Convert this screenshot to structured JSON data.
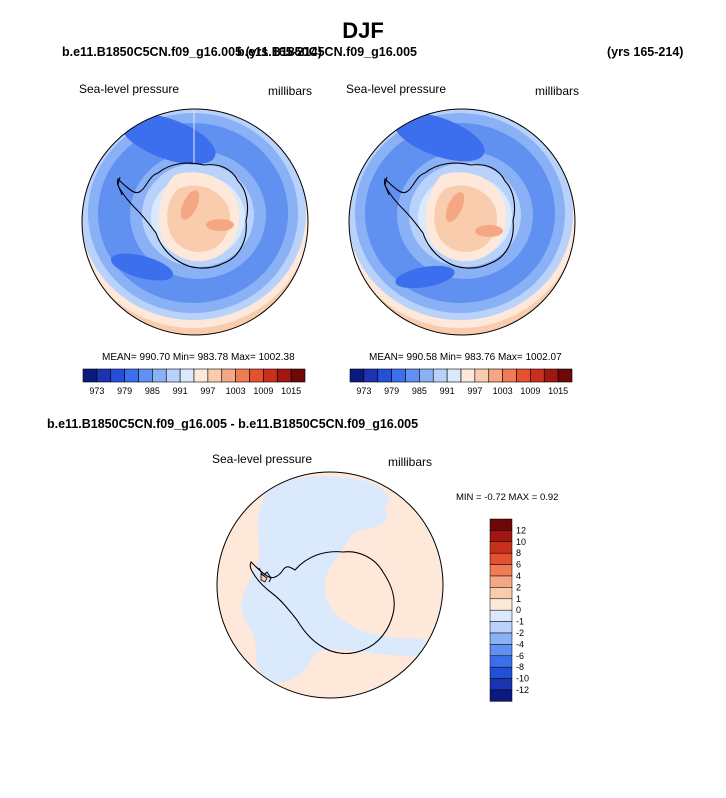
{
  "figure": {
    "title": "DJF",
    "case_left": "b.e11.B1850C5CN.f09_g16.005 (yrs 165-214)",
    "case_right": "b.e11.B1850C5CN.f09_g16.005",
    "years_right": "(yrs 165-214)"
  },
  "panel_left": {
    "field": "Sea-level pressure",
    "units": "millibars",
    "stats": "MEAN= 990.70  Min= 983.78  Max= 1002.38"
  },
  "panel_right": {
    "field": "Sea-level pressure",
    "units": "millibars",
    "stats": "MEAN= 990.58  Min= 983.76  Max= 1002.07"
  },
  "panel_diff": {
    "title": "b.e11.B1850C5CN.f09_g16.005 - b.e11.B1850C5CN.f09_g16.005",
    "field": "Sea-level pressure",
    "units": "millibars",
    "stats": "MIN =  -0.72 MAX =   0.92"
  },
  "colorbar_top": {
    "colors": [
      "#0a1a7e",
      "#1b33b0",
      "#2450d8",
      "#3c6fee",
      "#6090f0",
      "#8ab1f5",
      "#b8d2fb",
      "#dbe9fd",
      "#fde8d9",
      "#f9ccae",
      "#f5a783",
      "#f07c56",
      "#e4512f",
      "#c8301d",
      "#a01610",
      "#6e0707"
    ],
    "tick_labels": [
      "973",
      "979",
      "985",
      "991",
      "997",
      "1003",
      "1009",
      "1015"
    ]
  },
  "colorbar_diff": {
    "colors": [
      "#0a1a7e",
      "#1b33b0",
      "#2450d8",
      "#3c6fee",
      "#6090f0",
      "#8ab1f5",
      "#b8d2fb",
      "#dbe9fd",
      "#fde8d9",
      "#f9ccae",
      "#f5a783",
      "#f07c56",
      "#e4512f",
      "#c8301d",
      "#a01610",
      "#6e0707"
    ],
    "tick_labels": [
      "12",
      "10",
      "8",
      "6",
      "4",
      "2",
      "1",
      "0",
      "-1",
      "-2",
      "-4",
      "-6",
      "-8",
      "-10",
      "-12"
    ]
  }
}
